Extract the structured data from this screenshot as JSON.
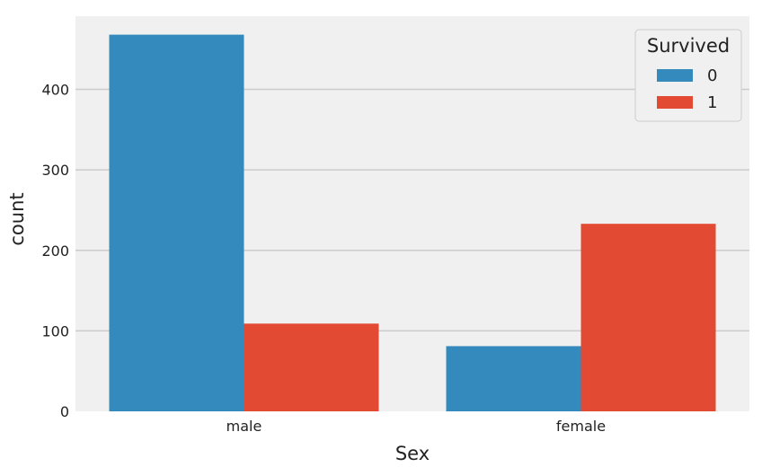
{
  "chart_data": {
    "type": "bar",
    "categories": [
      "male",
      "female"
    ],
    "series": [
      {
        "name": "0",
        "values": [
          468,
          81
        ],
        "color": "#348abd"
      },
      {
        "name": "1",
        "values": [
          109,
          233
        ],
        "color": "#e24a33"
      }
    ],
    "xlabel": "Sex",
    "ylabel": "count",
    "ylim": [
      0,
      491
    ],
    "yticks": [
      0,
      100,
      200,
      300,
      400
    ],
    "grid": true,
    "background": "#f0f0f0",
    "legend": {
      "title": "Survived",
      "placement": "top-right"
    }
  }
}
